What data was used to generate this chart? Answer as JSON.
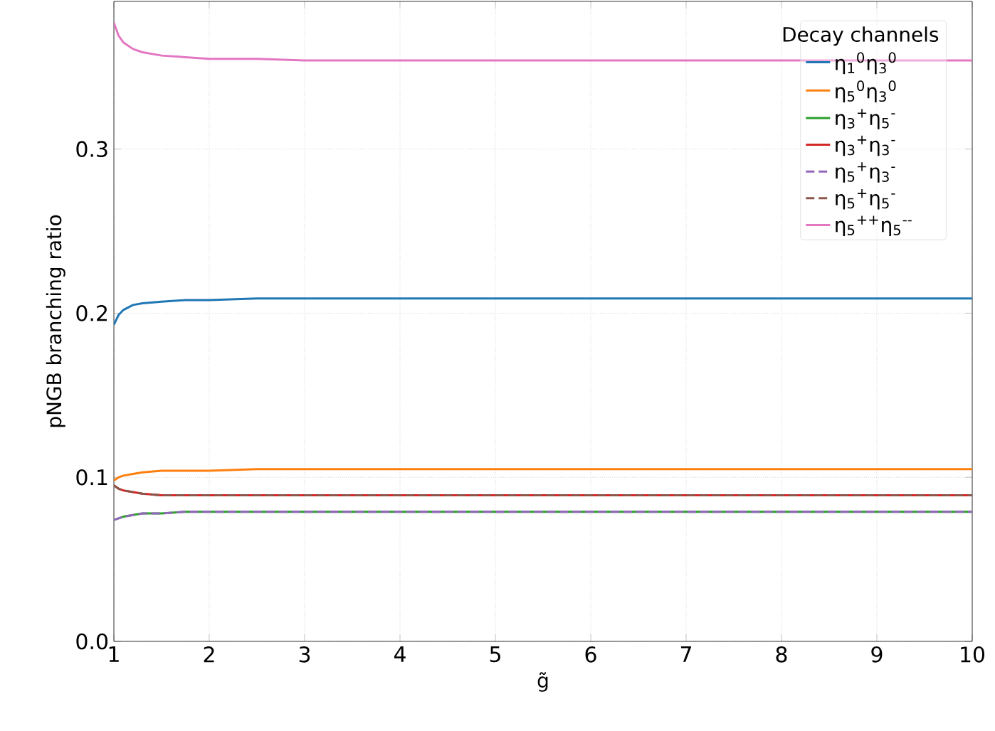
{
  "chart_data": {
    "type": "line",
    "xlabel": "g̃",
    "ylabel": "pNGB branching ratio",
    "legend_title": "Decay channels",
    "x": [
      1,
      1.05,
      1.1,
      1.2,
      1.3,
      1.5,
      1.75,
      2,
      2.5,
      3,
      4,
      5,
      6,
      7,
      8,
      9,
      10
    ],
    "series": [
      {
        "name": "η$_{1}$$^{0}$η$_{3}$$^{0}$",
        "color": "#1f77b4",
        "line_style": "solid",
        "values": [
          0.193,
          0.199,
          0.202,
          0.205,
          0.206,
          0.207,
          0.208,
          0.208,
          0.209,
          0.209,
          0.209,
          0.209,
          0.209,
          0.209,
          0.209,
          0.209,
          0.209
        ]
      },
      {
        "name": "η$_{5}$$^{0}$η$_{3}$$^{0}$",
        "color": "#ff7f0e",
        "line_style": "solid",
        "values": [
          0.098,
          0.1,
          0.101,
          0.102,
          0.103,
          0.104,
          0.104,
          0.104,
          0.105,
          0.105,
          0.105,
          0.105,
          0.105,
          0.105,
          0.105,
          0.105,
          0.105
        ]
      },
      {
        "name": "η$_{3}$$^{+}$η$_{5}$$^{-}$",
        "color": "#2ca02c",
        "line_style": "solid",
        "values": [
          0.074,
          0.075,
          0.076,
          0.077,
          0.078,
          0.078,
          0.079,
          0.079,
          0.079,
          0.079,
          0.079,
          0.079,
          0.079,
          0.079,
          0.079,
          0.079,
          0.079
        ]
      },
      {
        "name": "η$_{3}$$^{+}$η$_{3}$$^{-}$",
        "color": "#d62728",
        "line_style": "solid",
        "values": [
          0.095,
          0.093,
          0.092,
          0.091,
          0.09,
          0.089,
          0.089,
          0.089,
          0.089,
          0.089,
          0.089,
          0.089,
          0.089,
          0.089,
          0.089,
          0.089,
          0.089
        ]
      },
      {
        "name": "η$_{5}$$^{+}$η$_{3}$$^{-}$",
        "color": "#9467bd",
        "line_style": "dashed",
        "values": [
          0.074,
          0.075,
          0.076,
          0.077,
          0.078,
          0.078,
          0.079,
          0.079,
          0.079,
          0.079,
          0.079,
          0.079,
          0.079,
          0.079,
          0.079,
          0.079,
          0.079
        ]
      },
      {
        "name": "η$_{5}$$^{+}$η$_{5}$$^{-}$",
        "color": "#8c564b",
        "line_style": "dashed",
        "values": [
          0.095,
          0.093,
          0.092,
          0.091,
          0.09,
          0.089,
          0.089,
          0.089,
          0.089,
          0.089,
          0.089,
          0.089,
          0.089,
          0.089,
          0.089,
          0.089,
          0.089
        ]
      },
      {
        "name": "η$_{5}$$^{++}$η$_{5}$$^{--}$",
        "color": "#e377c2",
        "line_style": "solid",
        "values": [
          0.377,
          0.369,
          0.365,
          0.361,
          0.359,
          0.357,
          0.356,
          0.355,
          0.355,
          0.354,
          0.354,
          0.354,
          0.354,
          0.354,
          0.354,
          0.354,
          0.354
        ]
      }
    ],
    "xlim": [
      1,
      10
    ],
    "ylim": [
      0,
      0.39
    ],
    "xticks": [
      1,
      2,
      3,
      4,
      5,
      6,
      7,
      8,
      9,
      10
    ],
    "yticks": [
      {
        "value": 0,
        "label": "0.0"
      },
      {
        "value": 0.1,
        "label": "0.1"
      },
      {
        "value": 0.2,
        "label": "0.2"
      },
      {
        "value": 0.3,
        "label": "0.3"
      }
    ],
    "grid": true,
    "legend": "top right",
    "marker": "none"
  }
}
